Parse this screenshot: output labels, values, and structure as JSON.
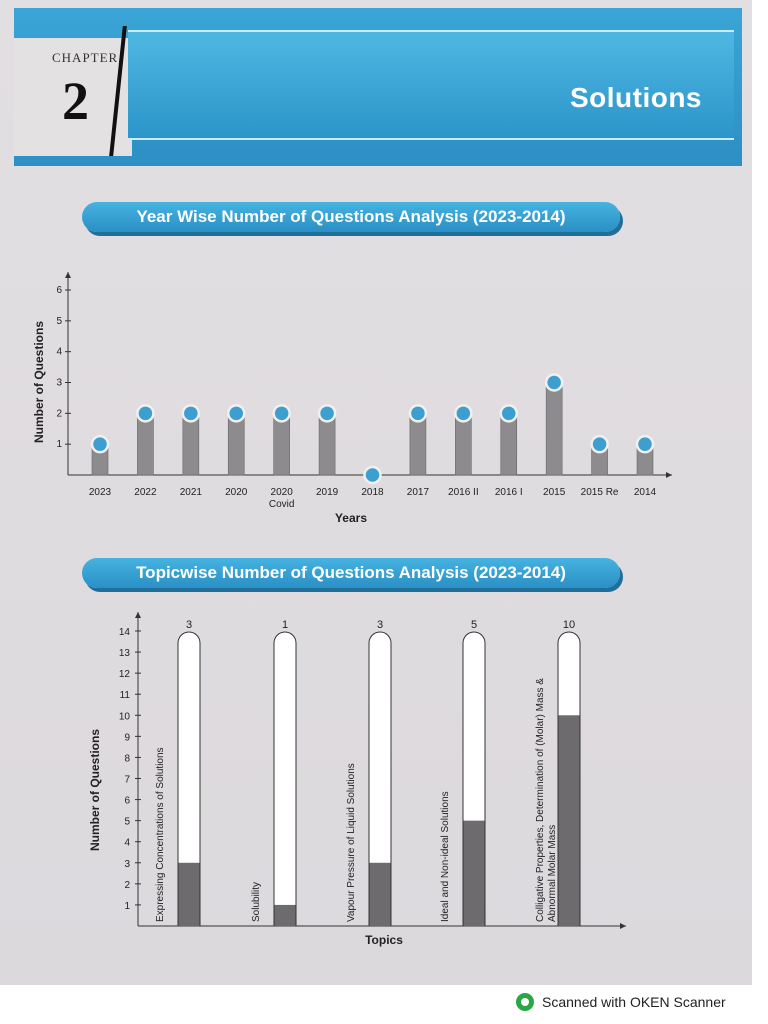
{
  "header": {
    "chapter_label": "CHAPTER",
    "chapter_number": "2",
    "chapter_title": "Solutions",
    "accent_color": "#2d8fc4"
  },
  "footer": {
    "scanner_text": "Scanned with OKEN Scanner",
    "icon": "oken-scanner-icon"
  },
  "chart_data": [
    {
      "type": "bar",
      "title": "Year Wise Number of Questions Analysis (2023-2014)",
      "xlabel": "Years",
      "ylabel": "Number of Questions",
      "categories": [
        "2023",
        "2022",
        "2021",
        "2020",
        "2020 Covid",
        "2019",
        "2018",
        "2017",
        "2016 II",
        "2016 I",
        "2015",
        "2015 Re",
        "2014"
      ],
      "category_lines": [
        [
          "2023"
        ],
        [
          "2022"
        ],
        [
          "2021"
        ],
        [
          "2020"
        ],
        [
          "2020",
          "Covid"
        ],
        [
          "2019"
        ],
        [
          "2018"
        ],
        [
          "2017"
        ],
        [
          "2016 II"
        ],
        [
          "2016 I"
        ],
        [
          "2015"
        ],
        [
          "2015 Re"
        ],
        [
          "2014"
        ]
      ],
      "values": [
        1,
        2,
        2,
        2,
        2,
        2,
        0,
        2,
        2,
        2,
        3,
        1,
        1
      ],
      "yticks": [
        1,
        2,
        3,
        4,
        5,
        6
      ],
      "ylim": [
        0,
        6.5
      ],
      "grid": false
    },
    {
      "type": "bar",
      "title": "Topicwise Number of Questions Analysis (2023-2014)",
      "xlabel": "Topics",
      "ylabel": "Number of Questions",
      "categories": [
        "Expressing Concentrations of Solutions",
        "Solubility",
        "Vapour Pressure of Liquid Solutions",
        "Ideal and Non-ideal Solutions",
        "Colligative Properties, Determination of (Molar) Mass & Abnormal Molar Mass"
      ],
      "category_lines": [
        [
          "Expressing Concentrations of Solutions"
        ],
        [
          "Solubility"
        ],
        [
          "Vapour Pressure of Liquid Solutions"
        ],
        [
          "Ideal and Non-ideal Solutions"
        ],
        [
          "Colligative Properties, Determination of (Molar) Mass &",
          "Abnormal Molar Mass"
        ]
      ],
      "values": [
        3,
        1,
        3,
        5,
        10
      ],
      "value_labels": [
        "3",
        "1",
        "3",
        "5",
        "10"
      ],
      "yticks": [
        1,
        2,
        3,
        4,
        5,
        6,
        7,
        8,
        9,
        10,
        11,
        12,
        13,
        14
      ],
      "ylim": [
        0,
        14.5
      ],
      "grid": false
    }
  ]
}
